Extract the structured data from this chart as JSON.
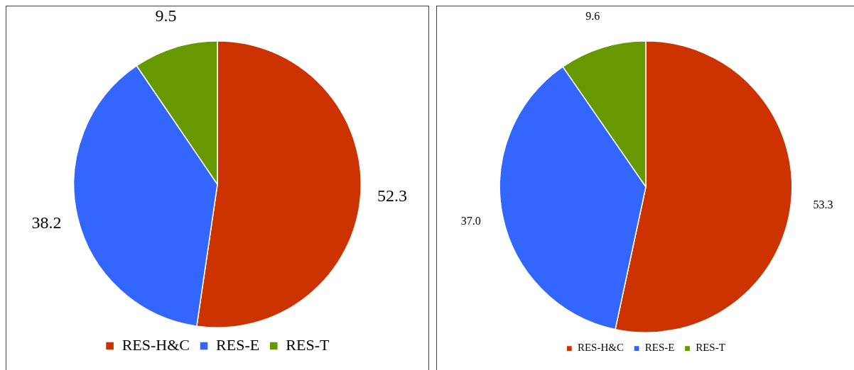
{
  "chart_data": [
    {
      "type": "pie",
      "categories": [
        "RES-H&C",
        "RES-E",
        "RES-T"
      ],
      "values": [
        52.3,
        38.2,
        9.5
      ],
      "colors": [
        "#cc3300",
        "#3366ff",
        "#669900"
      ],
      "data_labels": true,
      "legend": "bottom"
    },
    {
      "type": "pie",
      "categories": [
        "RES-H&C",
        "RES-E",
        "RES-T"
      ],
      "values": [
        53.3,
        37.0,
        9.6
      ],
      "value_labels": [
        "53.3",
        "37.0",
        "9.6"
      ],
      "colors": [
        "#cc3300",
        "#3366ff",
        "#669900"
      ],
      "legend": "bottom"
    }
  ]
}
